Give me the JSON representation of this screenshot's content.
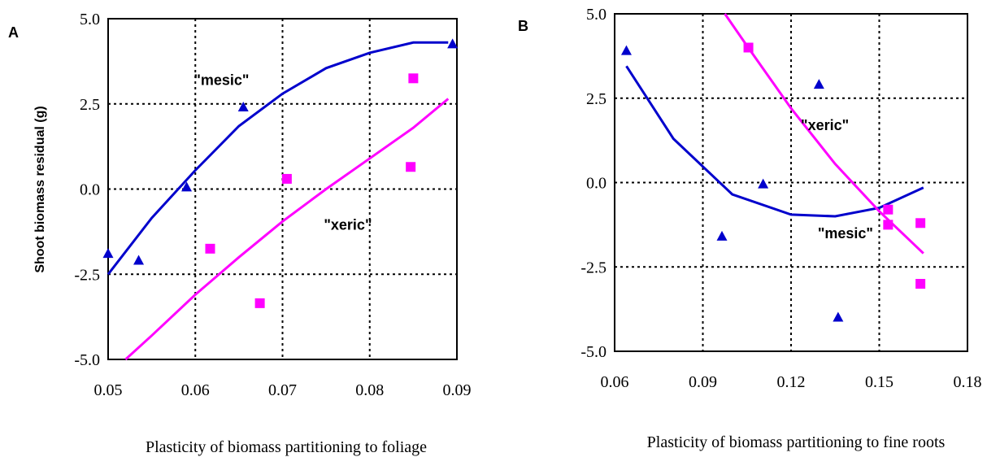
{
  "figure": {
    "y_axis_title": "Shoot biomass residual (g)"
  },
  "chart_data": [
    {
      "type": "scatter",
      "panel_label": "A",
      "xlabel": "Plasticity of biomass partitioning to foliage",
      "ylabel": "Shoot biomass residual (g)",
      "xlim": [
        0.05,
        0.09
      ],
      "ylim": [
        -5.0,
        5.0
      ],
      "x_ticks": [
        0.05,
        0.06,
        0.07,
        0.08,
        0.09
      ],
      "x_tick_labels": [
        "0.05",
        "0.06",
        "0.07",
        "0.08",
        "0.09"
      ],
      "y_ticks": [
        5.0,
        2.5,
        0.0,
        -2.5,
        -5.0
      ],
      "y_tick_labels": [
        "5.0",
        "2.5",
        "0.0",
        "-2.5",
        "-5.0"
      ],
      "grid": true,
      "series": [
        {
          "name": "mesic",
          "color": "#0000cc",
          "marker": "triangle",
          "points": [
            [
              0.05,
              -1.9
            ],
            [
              0.0535,
              -2.1
            ],
            [
              0.059,
              0.05
            ],
            [
              0.0655,
              2.4
            ],
            [
              0.0895,
              4.25
            ]
          ],
          "trend": [
            [
              0.05,
              -2.5
            ],
            [
              0.055,
              -0.85
            ],
            [
              0.06,
              0.55
            ],
            [
              0.065,
              1.85
            ],
            [
              0.07,
              2.8
            ],
            [
              0.075,
              3.55
            ],
            [
              0.08,
              4.0
            ],
            [
              0.085,
              4.3
            ],
            [
              0.089,
              4.3
            ]
          ]
        },
        {
          "name": "xeric",
          "color": "#ff00ff",
          "marker": "square",
          "points": [
            [
              0.0617,
              -1.75
            ],
            [
              0.0674,
              -3.35
            ],
            [
              0.0705,
              0.3
            ],
            [
              0.0847,
              0.65
            ],
            [
              0.085,
              3.25
            ]
          ],
          "trend": [
            [
              0.052,
              -5.0
            ],
            [
              0.055,
              -4.3
            ],
            [
              0.06,
              -3.1
            ],
            [
              0.065,
              -2.0
            ],
            [
              0.07,
              -0.95
            ],
            [
              0.075,
              0.0
            ],
            [
              0.08,
              0.9
            ],
            [
              0.085,
              1.8
            ],
            [
              0.089,
              2.65
            ]
          ]
        }
      ],
      "annotations": [
        {
          "text": "\"mesic\"",
          "x": 0.063,
          "y": 3.2
        },
        {
          "text": "\"xeric\"",
          "x": 0.0775,
          "y": -1.05
        }
      ]
    },
    {
      "type": "scatter",
      "panel_label": "B",
      "xlabel": "Plasticity of biomass partitioning to fine roots",
      "ylabel": "",
      "xlim": [
        0.06,
        0.18
      ],
      "ylim": [
        -5.0,
        5.0
      ],
      "x_ticks": [
        0.06,
        0.09,
        0.12,
        0.15,
        0.18
      ],
      "x_tick_labels": [
        "0.06",
        "0.09",
        "0.12",
        "0.15",
        "0.18"
      ],
      "y_ticks": [
        5.0,
        2.5,
        0.0,
        -2.5,
        -5.0
      ],
      "y_tick_labels": [
        "5.0",
        "2.5",
        "0.0",
        "-2.5",
        "-5.0"
      ],
      "grid": true,
      "series": [
        {
          "name": "mesic",
          "color": "#0000cc",
          "marker": "triangle",
          "points": [
            [
              0.064,
              3.9
            ],
            [
              0.0965,
              -1.6
            ],
            [
              0.1105,
              -0.05
            ],
            [
              0.1295,
              2.9
            ],
            [
              0.136,
              -4.0
            ]
          ],
          "trend": [
            [
              0.064,
              3.45
            ],
            [
              0.08,
              1.3
            ],
            [
              0.1,
              -0.35
            ],
            [
              0.12,
              -0.95
            ],
            [
              0.135,
              -1.0
            ],
            [
              0.15,
              -0.75
            ],
            [
              0.165,
              -0.15
            ]
          ]
        },
        {
          "name": "xeric",
          "color": "#ff00ff",
          "marker": "square",
          "points": [
            [
              0.1055,
              4.0
            ],
            [
              0.153,
              -0.8
            ],
            [
              0.153,
              -1.25
            ],
            [
              0.164,
              -1.2
            ],
            [
              0.164,
              -3.0
            ]
          ],
          "trend": [
            [
              0.0975,
              5.0
            ],
            [
              0.105,
              4.05
            ],
            [
              0.12,
              2.2
            ],
            [
              0.135,
              0.55
            ],
            [
              0.15,
              -0.85
            ],
            [
              0.165,
              -2.1
            ]
          ]
        }
      ],
      "annotations": [
        {
          "text": "\"xeric\"",
          "x": 0.1315,
          "y": 1.7
        },
        {
          "text": "\"mesic\"",
          "x": 0.1385,
          "y": -1.5
        }
      ]
    }
  ]
}
